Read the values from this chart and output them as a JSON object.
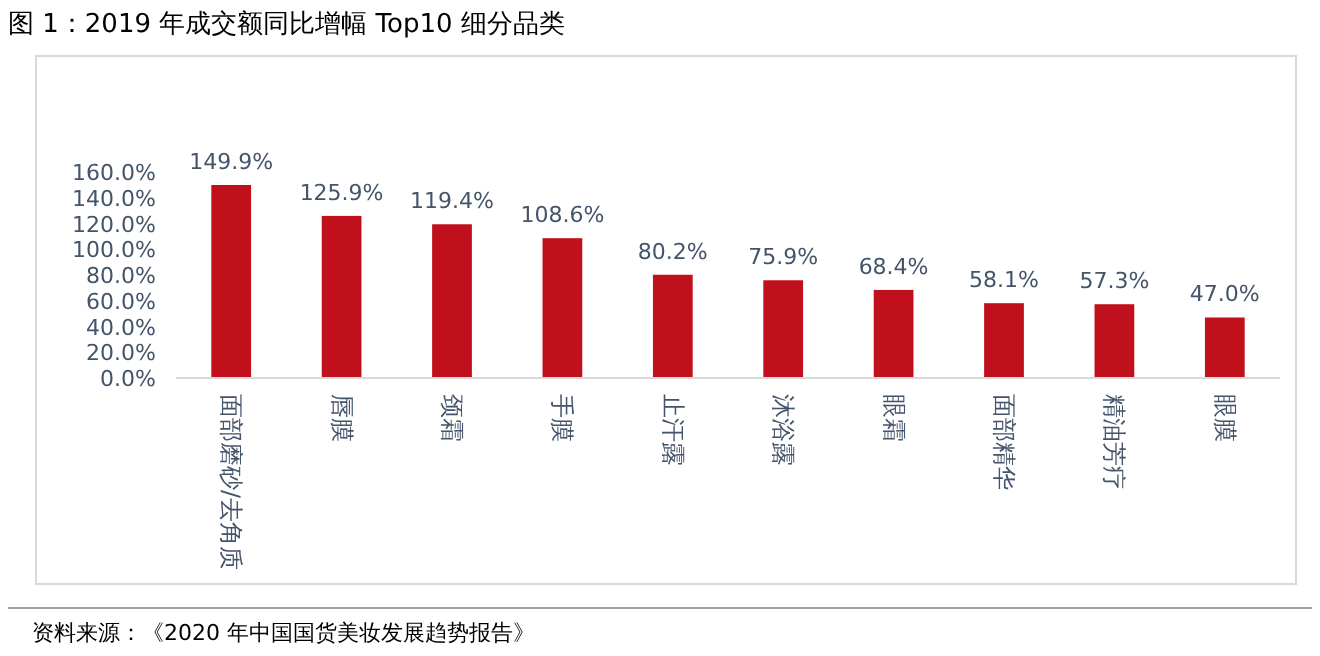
{
  "chart_data": {
    "type": "bar",
    "title": "图 1：2019 年成交额同比增幅 Top10 细分品类",
    "categories": [
      "面部磨砂/去角质",
      "唇膜",
      "颈霜",
      "手膜",
      "止汗露",
      "沐浴露",
      "眼霜",
      "面部精华",
      "精油芳疗",
      "眼膜"
    ],
    "values": [
      149.9,
      125.9,
      119.4,
      108.6,
      80.2,
      75.9,
      68.4,
      58.1,
      57.3,
      47.0
    ],
    "value_labels": [
      "149.9%",
      "125.9%",
      "119.4%",
      "108.6%",
      "80.2%",
      "75.9%",
      "68.4%",
      "58.1%",
      "57.3%",
      "47.0%"
    ],
    "color": "#c0101c",
    "ylim": [
      0,
      160
    ],
    "yticks": [
      {
        "value": 0,
        "label": "0.0%"
      },
      {
        "value": 20,
        "label": "20.0%"
      },
      {
        "value": 40,
        "label": "40.0%"
      },
      {
        "value": 60,
        "label": "60.0%"
      },
      {
        "value": 80,
        "label": "80.0%"
      },
      {
        "value": 100,
        "label": "100.0%"
      },
      {
        "value": 120,
        "label": "120.0%"
      },
      {
        "value": 140,
        "label": "140.0%"
      },
      {
        "value": 160,
        "label": "160.0%"
      }
    ],
    "grid": false,
    "annotations": [
      "资料来源：《2020 年中国国货美妆发展趋势报告》"
    ]
  }
}
